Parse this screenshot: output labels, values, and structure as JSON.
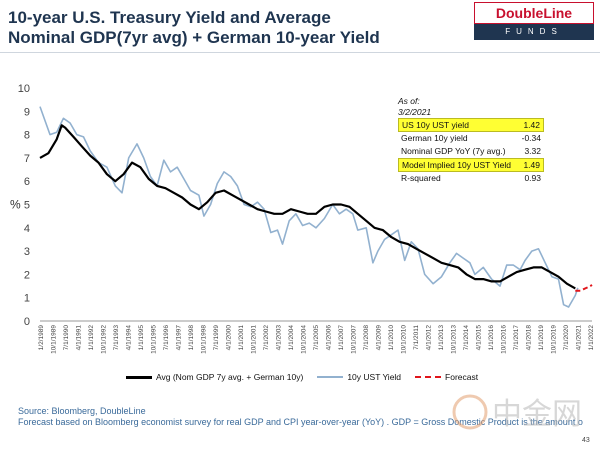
{
  "header": {
    "title_line1": "10-year U.S. Treasury Yield and Average",
    "title_line2": "Nominal GDP(7yr avg) + German 10-year Yield",
    "logo_top": "DoubleLine",
    "logo_bottom": "FUNDS"
  },
  "stats": {
    "asof_label": "As of:",
    "asof_date": "3/2/2021",
    "rows": [
      {
        "label": "US 10y UST yield",
        "value": "1.42",
        "highlight": true
      },
      {
        "label": "German 10y yield",
        "value": "-0.34",
        "highlight": false
      },
      {
        "label": "Nominal GDP YoY (7y avg.)",
        "value": "3.32",
        "highlight": false
      },
      {
        "label": "Model Implied 10y UST Yield",
        "value": "1.49",
        "highlight": true
      },
      {
        "label": "R-squared",
        "value": "0.93",
        "highlight": false
      }
    ]
  },
  "footer": {
    "source": "Source: Bloomberg, DoubleLine",
    "note": "Forecast based on Bloomberg economist survey for real GDP and CPI year-over-year (YoY) . GDP = Gross Domestic Product is the amount o",
    "page": "43"
  },
  "watermark": {
    "text": "中金网"
  },
  "chart_data": {
    "type": "line",
    "ylabel": "%",
    "ylim": [
      0,
      10
    ],
    "yticks": [
      0,
      1,
      2,
      3,
      4,
      5,
      6,
      7,
      8,
      9,
      10
    ],
    "xlim": [
      1989.0,
      2022.0
    ],
    "xtick_labels": [
      "1/2/1989",
      "10/1/1989",
      "7/1/1990",
      "4/1/1991",
      "1/1/1992",
      "10/1/1992",
      "7/1/1993",
      "4/1/1994",
      "1/1/1995",
      "10/1/1995",
      "7/1/1996",
      "4/1/1997",
      "1/1/1998",
      "10/1/1998",
      "7/1/1999",
      "4/1/2000",
      "1/1/2001",
      "10/1/2001",
      "7/1/2002",
      "4/1/2003",
      "1/1/2004",
      "10/1/2004",
      "7/1/2005",
      "4/1/2006",
      "1/1/2007",
      "10/1/2007",
      "7/1/2008",
      "4/1/2009",
      "1/1/2010",
      "10/1/2010",
      "7/1/2011",
      "4/1/2012",
      "1/1/2013",
      "10/1/2013",
      "7/1/2014",
      "4/1/2015",
      "1/1/2016",
      "10/1/2016",
      "7/1/2017",
      "4/1/2018",
      "1/1/2019",
      "10/1/2019",
      "7/1/2020",
      "4/1/2021",
      "1/1/2022"
    ],
    "grid": false,
    "legend_position": "bottom",
    "colors": {
      "avg": "#000000",
      "ust": "#92b1cf",
      "forecast": "#e0151b"
    },
    "series": [
      {
        "name": "Avg (Nom GDP 7y avg. + German 10y)",
        "x": [
          1989.0,
          1989.5,
          1990.0,
          1990.3,
          1990.5,
          1991.0,
          1991.5,
          1992.0,
          1992.5,
          1993.0,
          1993.5,
          1994.0,
          1994.5,
          1995.0,
          1995.5,
          1996.0,
          1996.5,
          1997.0,
          1997.5,
          1998.0,
          1998.5,
          1999.0,
          1999.5,
          2000.0,
          2000.5,
          2001.0,
          2001.5,
          2002.0,
          2002.5,
          2003.0,
          2003.5,
          2004.0,
          2004.5,
          2005.0,
          2005.5,
          2006.0,
          2006.5,
          2007.0,
          2007.5,
          2008.0,
          2008.5,
          2009.0,
          2009.5,
          2010.0,
          2010.5,
          2011.0,
          2011.5,
          2012.0,
          2012.5,
          2013.0,
          2013.5,
          2014.0,
          2014.5,
          2015.0,
          2015.5,
          2016.0,
          2016.5,
          2017.0,
          2017.5,
          2018.0,
          2018.5,
          2019.0,
          2019.5,
          2020.0,
          2020.5,
          2021.0
        ],
        "y": [
          7.0,
          7.2,
          7.8,
          8.4,
          8.3,
          7.9,
          7.5,
          7.1,
          6.8,
          6.3,
          6.0,
          6.3,
          6.8,
          6.6,
          6.1,
          5.8,
          5.7,
          5.5,
          5.3,
          5.0,
          4.8,
          5.1,
          5.5,
          5.6,
          5.4,
          5.2,
          5.0,
          4.8,
          4.7,
          4.6,
          4.6,
          4.8,
          4.7,
          4.6,
          4.6,
          4.9,
          5.0,
          5.0,
          4.9,
          4.6,
          4.3,
          4.0,
          3.9,
          3.6,
          3.4,
          3.3,
          3.1,
          2.9,
          2.7,
          2.5,
          2.4,
          2.3,
          2.0,
          1.8,
          1.8,
          1.7,
          1.7,
          1.9,
          2.1,
          2.2,
          2.3,
          2.3,
          2.1,
          1.9,
          1.6,
          1.4
        ]
      },
      {
        "name": "10y UST Yield",
        "x": [
          1989.0,
          1989.3,
          1989.6,
          1990.0,
          1990.4,
          1990.8,
          1991.2,
          1991.6,
          1992.0,
          1992.5,
          1993.0,
          1993.5,
          1993.9,
          1994.3,
          1994.8,
          1995.2,
          1995.6,
          1996.0,
          1996.4,
          1996.8,
          1997.2,
          1997.6,
          1998.0,
          1998.5,
          1998.8,
          1999.2,
          1999.6,
          2000.0,
          2000.4,
          2000.8,
          2001.2,
          2001.6,
          2002.0,
          2002.4,
          2002.8,
          2003.2,
          2003.5,
          2003.9,
          2004.3,
          2004.7,
          2005.1,
          2005.5,
          2006.0,
          2006.5,
          2006.9,
          2007.3,
          2007.7,
          2008.0,
          2008.5,
          2008.9,
          2009.2,
          2009.6,
          2010.0,
          2010.4,
          2010.8,
          2011.2,
          2011.6,
          2012.0,
          2012.5,
          2013.0,
          2013.5,
          2013.9,
          2014.3,
          2014.7,
          2015.0,
          2015.5,
          2016.0,
          2016.5,
          2016.9,
          2017.3,
          2017.7,
          2018.0,
          2018.4,
          2018.8,
          2019.2,
          2019.6,
          2020.0,
          2020.3,
          2020.6,
          2021.0,
          2021.15
        ],
        "y": [
          9.2,
          8.6,
          8.0,
          8.1,
          8.7,
          8.5,
          8.0,
          7.9,
          7.3,
          6.8,
          6.6,
          5.8,
          5.5,
          7.0,
          7.6,
          7.0,
          6.2,
          5.8,
          6.9,
          6.4,
          6.6,
          6.1,
          5.6,
          5.4,
          4.5,
          5.0,
          5.9,
          6.4,
          6.2,
          5.8,
          5.0,
          4.9,
          5.1,
          4.8,
          3.8,
          3.9,
          3.3,
          4.3,
          4.6,
          4.1,
          4.2,
          4.0,
          4.4,
          5.0,
          4.6,
          4.8,
          4.6,
          3.9,
          4.0,
          2.5,
          3.0,
          3.5,
          3.7,
          3.9,
          2.6,
          3.4,
          3.1,
          2.0,
          1.6,
          1.9,
          2.5,
          2.9,
          2.7,
          2.5,
          2.0,
          2.3,
          1.8,
          1.5,
          2.4,
          2.4,
          2.2,
          2.6,
          3.0,
          3.1,
          2.5,
          1.9,
          1.8,
          0.7,
          0.6,
          1.1,
          1.42
        ]
      },
      {
        "name": "Forecast",
        "x": [
          2021.0,
          2021.3,
          2021.6,
          2021.9,
          2022.0
        ],
        "y": [
          1.3,
          1.3,
          1.4,
          1.5,
          1.55
        ]
      }
    ]
  }
}
